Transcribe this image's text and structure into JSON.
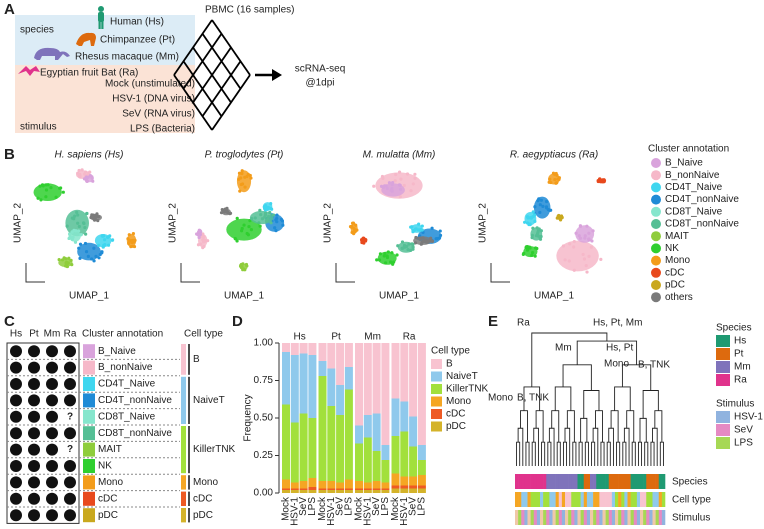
{
  "panel_labels": [
    "A",
    "B",
    "C",
    "D",
    "E"
  ],
  "panel_a": {
    "title": "PBMC (16 samples)",
    "species_label": "species",
    "species": [
      "Human (Hs)",
      "Chimpanzee (Pt)",
      "Rhesus macaque (Mm)",
      "Egyptian fruit Bat (Ra)"
    ],
    "stimulus_label": "stimulus",
    "stimuli": [
      "Mock (unstimulated)",
      "HSV-1 (DNA virus)",
      "SeV (RNA virus)",
      "LPS (Bacteria)"
    ],
    "output": [
      "scRNA-seq",
      "@1dpi"
    ]
  },
  "panel_b": {
    "titles": [
      "H. sapiens (Hs)",
      "P. troglodytes (Pt)",
      "M. mulatta (Mm)",
      "R. aegyptiacus (Ra)"
    ],
    "x_label": "UMAP_1",
    "y_label": "UMAP_2",
    "legend_title": "Cluster annotation",
    "clusters": [
      "B_Naive",
      "B_nonNaive",
      "CD4T_Naive",
      "CD4T_nonNaive",
      "CD8T_Naive",
      "CD8T_nonNaive",
      "MAIT",
      "NK",
      "Mono",
      "cDC",
      "pDC",
      "others"
    ],
    "colors": [
      "#d9a3dc",
      "#f6b8c9",
      "#3fd6ef",
      "#1f8bd6",
      "#86e6cd",
      "#55bf95",
      "#8fcd3c",
      "#2fcf2f",
      "#f39c1a",
      "#e8491d",
      "#c9a81e",
      "#7a7a7a"
    ]
  },
  "panel_c": {
    "species": [
      "Hs",
      "Pt",
      "Mm",
      "Ra"
    ],
    "cluster_header": "Cluster annotation",
    "celltype_header": "Cell type",
    "rows": [
      [
        true,
        true,
        true,
        true
      ],
      [
        true,
        true,
        true,
        true
      ],
      [
        true,
        true,
        true,
        true
      ],
      [
        true,
        true,
        true,
        true
      ],
      [
        true,
        true,
        true,
        "?"
      ],
      [
        true,
        true,
        true,
        true
      ],
      [
        true,
        true,
        true,
        "?"
      ],
      [
        true,
        true,
        true,
        true
      ],
      [
        true,
        true,
        true,
        true
      ],
      [
        true,
        true,
        true,
        true
      ],
      [
        true,
        true,
        true,
        true
      ]
    ],
    "cell_types": [
      {
        "name": "B",
        "span": 2
      },
      {
        "name": "NaiveT",
        "span": 3
      },
      {
        "name": "KillerTNK",
        "span": 3
      },
      {
        "name": "Mono",
        "span": 1
      },
      {
        "name": "cDC",
        "span": 1
      },
      {
        "name": "pDC",
        "span": 1
      }
    ]
  },
  "panel_d": {
    "type": "bar",
    "stacked": true,
    "y_label": "Frequency",
    "groups": [
      "Hs",
      "Pt",
      "Mm",
      "Ra"
    ],
    "categories": [
      "Mock",
      "HSV-1",
      "SeV",
      "LPS"
    ],
    "ylim": [
      0,
      1
    ],
    "yticks": [
      {
        "value": 0,
        "label": "0.00"
      },
      {
        "value": 0.25,
        "label": "0.25"
      },
      {
        "value": 0.5,
        "label": "0.50"
      },
      {
        "value": 0.75,
        "label": "0.75"
      },
      {
        "value": 1,
        "label": "1.00"
      }
    ],
    "legend_title": "Cell type",
    "series": [
      {
        "name": "B",
        "color": "#f8c3d0",
        "values": [
          0.06,
          0.08,
          0.07,
          0.08,
          0.12,
          0.17,
          0.28,
          0.16,
          0.55,
          0.48,
          0.47,
          0.68,
          0.37,
          0.39,
          0.49,
          0.68
        ]
      },
      {
        "name": "NaiveT",
        "color": "#8fc9ec",
        "values": [
          0.35,
          0.45,
          0.4,
          0.42,
          0.1,
          0.25,
          0.2,
          0.15,
          0.12,
          0.15,
          0.25,
          0.1,
          0.25,
          0.2,
          0.2,
          0.1
        ]
      },
      {
        "name": "KillerTNK",
        "color": "#a2e03c",
        "values": [
          0.5,
          0.4,
          0.45,
          0.4,
          0.7,
          0.5,
          0.45,
          0.6,
          0.25,
          0.3,
          0.2,
          0.15,
          0.25,
          0.3,
          0.2,
          0.1
        ]
      },
      {
        "name": "Mono",
        "color": "#f5a623",
        "values": [
          0.06,
          0.04,
          0.05,
          0.06,
          0.05,
          0.05,
          0.04,
          0.06,
          0.05,
          0.04,
          0.05,
          0.04,
          0.08,
          0.06,
          0.06,
          0.07
        ]
      },
      {
        "name": "cDC",
        "color": "#ee5a24",
        "values": [
          0.01,
          0.01,
          0.01,
          0.02,
          0.01,
          0.01,
          0.01,
          0.01,
          0.01,
          0.01,
          0.01,
          0.01,
          0.02,
          0.02,
          0.02,
          0.02
        ]
      },
      {
        "name": "pDC",
        "color": "#d4b32a",
        "values": [
          0.02,
          0.02,
          0.02,
          0.02,
          0.02,
          0.02,
          0.02,
          0.02,
          0.02,
          0.02,
          0.02,
          0.02,
          0.03,
          0.03,
          0.03,
          0.03
        ]
      }
    ]
  },
  "panel_e": {
    "annotations": [
      "Ra",
      "Hs, Pt, Mm",
      "Mm",
      "Hs, Pt",
      "Mono",
      "B, TNK",
      "Mono",
      "B, TNK"
    ],
    "track_labels": [
      "Species",
      "Cell type",
      "Stimulus"
    ],
    "species_legend": {
      "title": "Species",
      "items": [
        {
          "name": "Hs",
          "color": "#1f9a72"
        },
        {
          "name": "Pt",
          "color": "#dd6a0e"
        },
        {
          "name": "Mm",
          "color": "#7f73bb"
        },
        {
          "name": "Ra",
          "color": "#e0338c"
        }
      ]
    },
    "stimulus_legend": {
      "title": "Stimulus",
      "items": [
        {
          "name": "HSV-1",
          "color": "#90b3df"
        },
        {
          "name": "SeV",
          "color": "#e58ac3"
        },
        {
          "name": "LPS",
          "color": "#a6d854"
        }
      ]
    }
  }
}
